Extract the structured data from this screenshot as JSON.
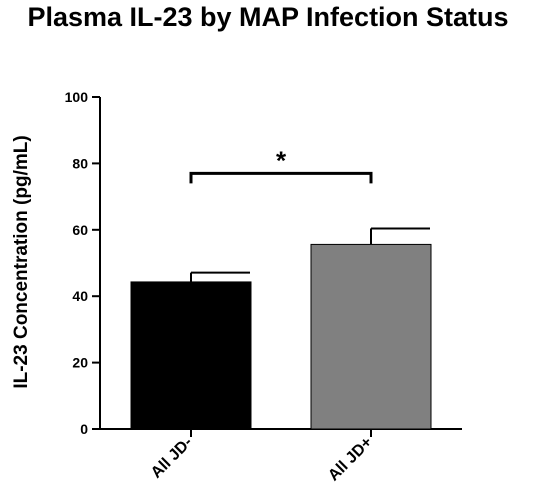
{
  "chart_data": {
    "type": "bar",
    "title": "Plasma IL-23 by MAP Infection Status",
    "xlabel": "",
    "ylabel": "IL-23 Concentration (pg/mL)",
    "ylim": [
      0,
      100
    ],
    "yticks": [
      0,
      20,
      40,
      60,
      80,
      100
    ],
    "categories": [
      "All JD-",
      "All JD+"
    ],
    "values": [
      44.3,
      55.6
    ],
    "errors": [
      2.8,
      4.8
    ],
    "colors": [
      "#000000",
      "#808080"
    ],
    "grid": false,
    "significance": {
      "from": 0,
      "to": 1,
      "y": 77,
      "label": "*"
    }
  }
}
